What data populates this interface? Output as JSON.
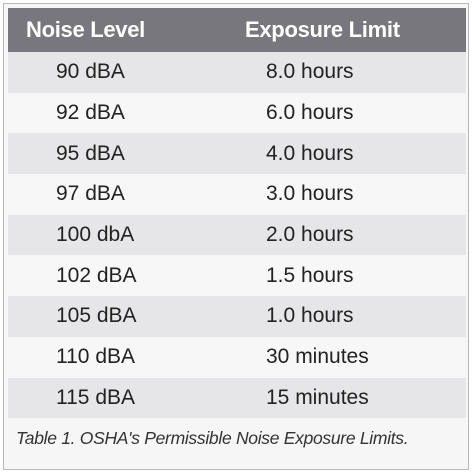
{
  "table": {
    "headers": [
      "Noise Level",
      "Exposure Limit"
    ],
    "rows": [
      [
        "90 dBA",
        "8.0 hours"
      ],
      [
        "92 dBA",
        "6.0 hours"
      ],
      [
        "95 dBA",
        "4.0 hours"
      ],
      [
        "97 dBA",
        "3.0 hours"
      ],
      [
        "100 dbA",
        "2.0 hours"
      ],
      [
        "102 dBA",
        "1.5 hours"
      ],
      [
        "105 dBA",
        "1.0 hours"
      ],
      [
        "110 dBA",
        "30 minutes"
      ],
      [
        "115 dBA",
        "15 minutes"
      ]
    ]
  },
  "caption": "Table 1. OSHA's Permissible Noise Exposure Limits.",
  "colors": {
    "header_bg": "#77777d",
    "header_text": "#ffffff",
    "row_shaded": "#e6e6e8",
    "row_plain": "#f7f7f7"
  }
}
